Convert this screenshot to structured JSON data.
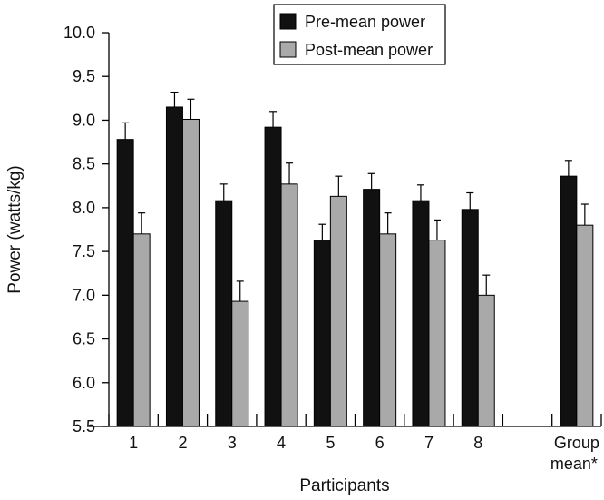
{
  "chart_data": {
    "type": "bar",
    "title": "",
    "xlabel": "Participants",
    "ylabel": "Power (watts/kg)",
    "ylim": [
      5.5,
      10.0
    ],
    "yticks": [
      "5.5",
      "6.0",
      "6.5",
      "7.0",
      "7.5",
      "8.0",
      "8.5",
      "9.0",
      "9.5",
      "10.0"
    ],
    "grid": false,
    "legend_position": "top-center",
    "categories": [
      {
        "label": "1"
      },
      {
        "label": "2"
      },
      {
        "label": "3"
      },
      {
        "label": "4"
      },
      {
        "label": "5"
      },
      {
        "label": "6"
      },
      {
        "label": "7"
      },
      {
        "label": "8"
      },
      {
        "label": ""
      },
      {
        "label": "Group",
        "label2": "mean*"
      }
    ],
    "series": [
      {
        "name": "Pre-mean power",
        "color": "#111111",
        "values": [
          8.78,
          9.15,
          8.08,
          8.92,
          7.63,
          8.21,
          8.08,
          7.98,
          null,
          8.36
        ],
        "error": [
          0.19,
          0.17,
          0.19,
          0.18,
          0.18,
          0.18,
          0.18,
          0.19,
          null,
          0.18
        ]
      },
      {
        "name": "Post-mean power",
        "color": "#a9a9a9",
        "values": [
          7.7,
          9.01,
          6.93,
          8.27,
          8.13,
          7.7,
          7.63,
          7.0,
          null,
          7.8
        ],
        "error": [
          0.24,
          0.23,
          0.23,
          0.24,
          0.23,
          0.24,
          0.23,
          0.23,
          null,
          0.24
        ]
      }
    ]
  }
}
